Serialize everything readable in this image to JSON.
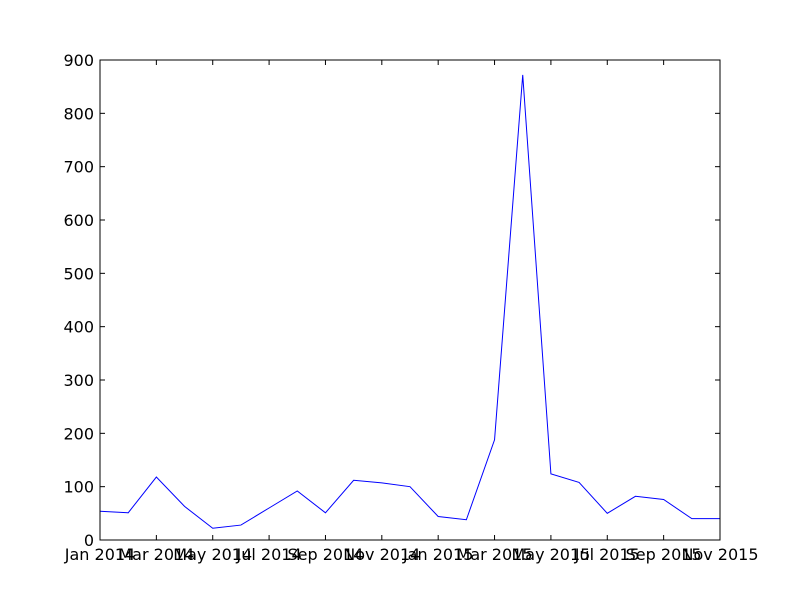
{
  "chart_data": {
    "type": "line",
    "title": "",
    "xlabel": "",
    "ylabel": "",
    "x": [
      "2014-01",
      "2014-02",
      "2014-03",
      "2014-04",
      "2014-05",
      "2014-06",
      "2014-07",
      "2014-08",
      "2014-09",
      "2014-10",
      "2014-11",
      "2014-12",
      "2015-01",
      "2015-02",
      "2015-03",
      "2015-04",
      "2015-05",
      "2015-06",
      "2015-07",
      "2015-08",
      "2015-09",
      "2015-10",
      "2015-11"
    ],
    "xlim": [
      "2014-01",
      "2015-11"
    ],
    "ylim": [
      0,
      900
    ],
    "y_ticks": [
      0,
      100,
      200,
      300,
      400,
      500,
      600,
      700,
      800,
      900
    ],
    "x_ticks": [
      {
        "x": "2014-01",
        "label": "Jan 2014"
      },
      {
        "x": "2014-03",
        "label": "Mar 2014"
      },
      {
        "x": "2014-05",
        "label": "May 2014"
      },
      {
        "x": "2014-07",
        "label": "Jul 2014"
      },
      {
        "x": "2014-09",
        "label": "Sep 2014"
      },
      {
        "x": "2014-11",
        "label": "Nov 2014"
      },
      {
        "x": "2015-01",
        "label": "Jan 2015"
      },
      {
        "x": "2015-03",
        "label": "Mar 2015"
      },
      {
        "x": "2015-05",
        "label": "May 2015"
      },
      {
        "x": "2015-07",
        "label": "Jul 2015"
      },
      {
        "x": "2015-09",
        "label": "Sep 2015"
      },
      {
        "x": "2015-11",
        "label": "Nov 2015"
      }
    ],
    "series": [
      {
        "color": "#0000ff",
        "values": [
          54,
          51,
          118,
          63,
          22,
          28,
          60,
          92,
          51,
          112,
          107,
          100,
          44,
          38,
          188,
          872,
          124,
          108,
          50,
          82,
          76,
          40,
          40
        ]
      }
    ],
    "grid": false,
    "legend": "none"
  }
}
